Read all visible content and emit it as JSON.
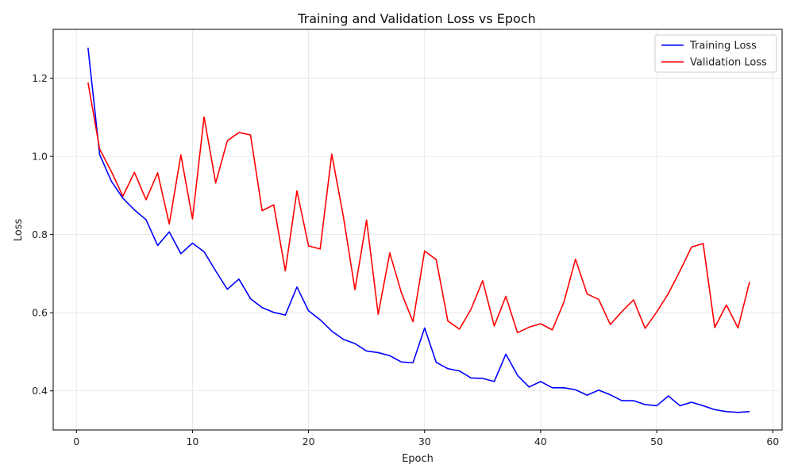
{
  "chart_data": {
    "type": "line",
    "title": "Training and Validation Loss vs Epoch",
    "xlabel": "Epoch",
    "ylabel": "Loss",
    "xlim": [
      -2,
      60.8
    ],
    "ylim": [
      0.3,
      1.325
    ],
    "xticks": [
      0,
      10,
      20,
      30,
      40,
      50,
      60
    ],
    "yticks": [
      0.4,
      0.6,
      0.8,
      1.0,
      1.2
    ],
    "xtick_labels": [
      "0",
      "10",
      "20",
      "30",
      "40",
      "50",
      "60"
    ],
    "ytick_labels": [
      "0.4",
      "0.6",
      "0.8",
      "1.0",
      "1.2"
    ],
    "grid": true,
    "legend_position": "top-right",
    "x": [
      1,
      2,
      3,
      4,
      5,
      6,
      7,
      8,
      9,
      10,
      11,
      12,
      13,
      14,
      15,
      16,
      17,
      18,
      19,
      20,
      21,
      22,
      23,
      24,
      25,
      26,
      27,
      28,
      29,
      30,
      31,
      32,
      33,
      34,
      35,
      36,
      37,
      38,
      39,
      40,
      41,
      42,
      43,
      44,
      45,
      46,
      47,
      48,
      49,
      50,
      51,
      52,
      53,
      54,
      55,
      56,
      57,
      58
    ],
    "series": [
      {
        "name": "Training Loss",
        "color": "#0000ff",
        "values": [
          1.278,
          1.005,
          0.937,
          0.893,
          0.863,
          0.838,
          0.772,
          0.807,
          0.751,
          0.778,
          0.756,
          0.707,
          0.66,
          0.686,
          0.636,
          0.613,
          0.601,
          0.594,
          0.666,
          0.605,
          0.582,
          0.553,
          0.532,
          0.521,
          0.502,
          0.498,
          0.49,
          0.474,
          0.472,
          0.561,
          0.473,
          0.457,
          0.451,
          0.433,
          0.432,
          0.424,
          0.494,
          0.44,
          0.41,
          0.424,
          0.408,
          0.408,
          0.403,
          0.389,
          0.402,
          0.39,
          0.375,
          0.375,
          0.365,
          0.362,
          0.387,
          0.362,
          0.371,
          0.362,
          0.352,
          0.347,
          0.345,
          0.347
        ]
      },
      {
        "name": "Validation Loss",
        "color": "#ff0000",
        "values": [
          1.189,
          1.019,
          0.962,
          0.898,
          0.959,
          0.889,
          0.958,
          0.827,
          1.004,
          0.84,
          1.101,
          0.932,
          1.04,
          1.061,
          1.055,
          0.861,
          0.876,
          0.707,
          0.912,
          0.771,
          0.763,
          1.006,
          0.846,
          0.659,
          0.837,
          0.596,
          0.753,
          0.651,
          0.577,
          0.758,
          0.736,
          0.579,
          0.558,
          0.609,
          0.682,
          0.566,
          0.642,
          0.549,
          0.563,
          0.572,
          0.556,
          0.627,
          0.737,
          0.648,
          0.634,
          0.57,
          0.603,
          0.633,
          0.56,
          0.602,
          0.649,
          0.707,
          0.768,
          0.777,
          0.562,
          0.62,
          0.561,
          0.679
        ]
      }
    ]
  }
}
